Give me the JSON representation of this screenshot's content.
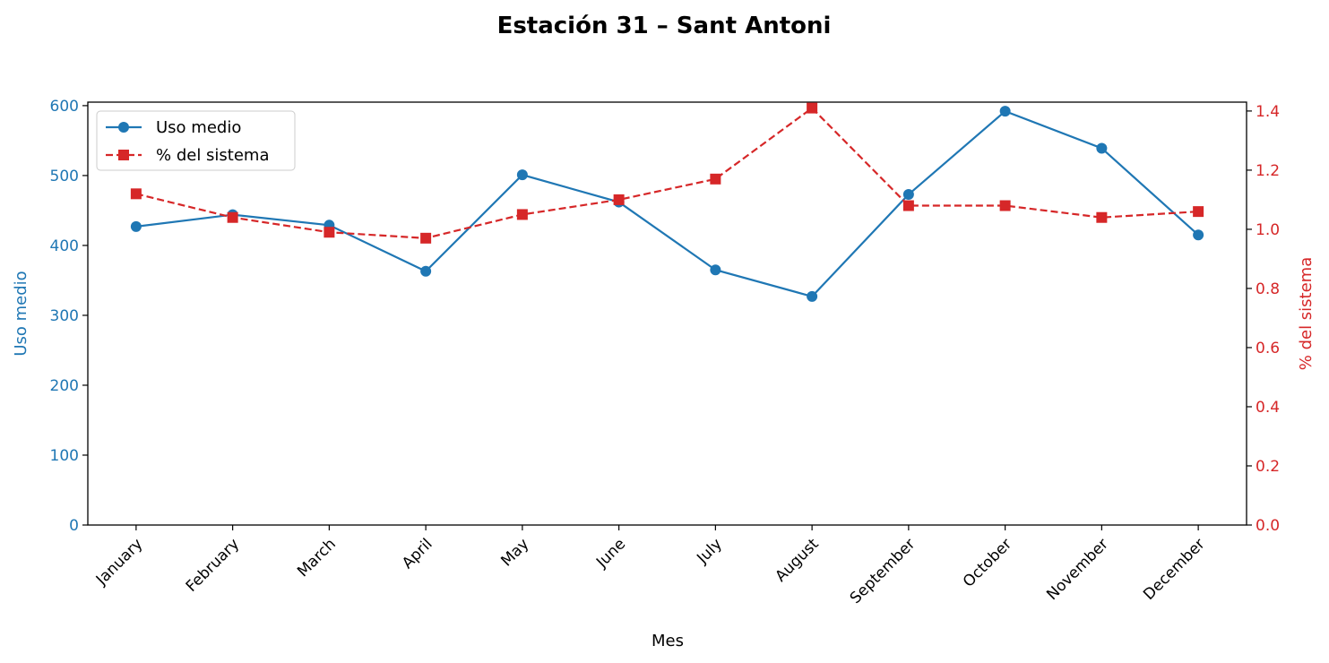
{
  "chart_data": {
    "type": "line",
    "title": "Estación 31 – Sant Antoni",
    "xlabel": "Mes",
    "categories": [
      "January",
      "February",
      "March",
      "April",
      "May",
      "June",
      "July",
      "August",
      "September",
      "October",
      "November",
      "December"
    ],
    "y_left": {
      "label": "Uso medio",
      "range": [
        0,
        605
      ],
      "ticks": [
        0,
        100,
        200,
        300,
        400,
        500,
        600
      ],
      "color": "#1f77b4"
    },
    "y_right": {
      "label": "% del sistema",
      "range": [
        0,
        1.43
      ],
      "ticks": [
        0.0,
        0.2,
        0.4,
        0.6,
        0.8,
        1.0,
        1.2,
        1.4
      ],
      "color": "#d62728"
    },
    "series": [
      {
        "name": "Uso medio",
        "axis": "left",
        "color": "#1f77b4",
        "style": "solid",
        "marker": "circle",
        "values": [
          427,
          444,
          429,
          363,
          501,
          462,
          365,
          327,
          473,
          592,
          539,
          415
        ]
      },
      {
        "name": "% del sistema",
        "axis": "right",
        "color": "#d62728",
        "style": "dashed",
        "marker": "square",
        "values": [
          1.12,
          1.04,
          0.99,
          0.97,
          1.05,
          1.1,
          1.17,
          1.41,
          1.08,
          1.08,
          1.04,
          1.06
        ]
      }
    ],
    "legend": "upper-left",
    "grid": false
  }
}
